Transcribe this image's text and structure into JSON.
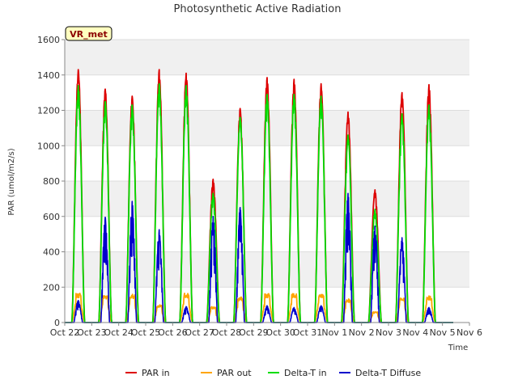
{
  "chart_data": {
    "type": "line",
    "title": "Photosynthetic Active Radiation",
    "xlabel": "Time",
    "ylabel": "PAR (umol/m2/s)",
    "ylim": [
      0,
      1600
    ],
    "yticks": [
      0,
      200,
      400,
      600,
      800,
      1000,
      1200,
      1400,
      1600
    ],
    "xlim": [
      0,
      15
    ],
    "xtick_labels": [
      "Oct 22",
      "Oct 23",
      "Oct 24",
      "Oct 25",
      "Oct 26",
      "Oct 27",
      "Oct 28",
      "Oct 29",
      "Oct 30",
      "Oct 31",
      "Nov 1",
      "Nov 2",
      "Nov 3",
      "Nov 4",
      "Nov 5",
      "Nov 6"
    ],
    "station_badge": "VR_met",
    "legend_position": "bottom-center",
    "series": [
      {
        "name": "PAR in",
        "color": "#dd0000",
        "day_centers": [
          0.5,
          1.5,
          2.5,
          3.5,
          4.5,
          5.5,
          6.5,
          7.5,
          8.5,
          9.5,
          10.5,
          11.5,
          12.5,
          13.5
        ],
        "daily_peaks": [
          1430,
          1320,
          1280,
          1430,
          1410,
          810,
          1210,
          1385,
          1375,
          1350,
          1190,
          750,
          1300,
          1345
        ]
      },
      {
        "name": "PAR out",
        "color": "#ffa500",
        "day_centers": [
          0.5,
          1.5,
          2.5,
          3.5,
          4.5,
          5.5,
          6.5,
          7.5,
          8.5,
          9.5,
          10.5,
          11.5,
          12.5,
          13.5
        ],
        "daily_peaks": [
          165,
          155,
          160,
          100,
          165,
          90,
          145,
          165,
          165,
          165,
          135,
          60,
          140,
          150
        ]
      },
      {
        "name": "Delta-T in",
        "color": "#00dd00",
        "day_centers": [
          0.5,
          1.5,
          2.5,
          3.5,
          4.5,
          5.5,
          6.5,
          7.5,
          8.5,
          9.5,
          10.5,
          11.5,
          12.5,
          13.5
        ],
        "daily_peaks": [
          1340,
          1250,
          1230,
          1350,
          1340,
          730,
          1160,
          1290,
          1290,
          1280,
          1060,
          640,
          1180,
          1230
        ]
      },
      {
        "name": "Delta-T Diffuse",
        "color": "#0000cc",
        "day_centers": [
          0.5,
          1.5,
          2.5,
          3.5,
          4.5,
          5.5,
          6.5,
          7.5,
          8.5,
          9.5,
          10.5,
          11.5,
          12.5,
          13.5
        ],
        "daily_peaks": [
          125,
          595,
          685,
          525,
          90,
          600,
          650,
          95,
          85,
          95,
          730,
          545,
          480,
          85
        ]
      }
    ]
  }
}
